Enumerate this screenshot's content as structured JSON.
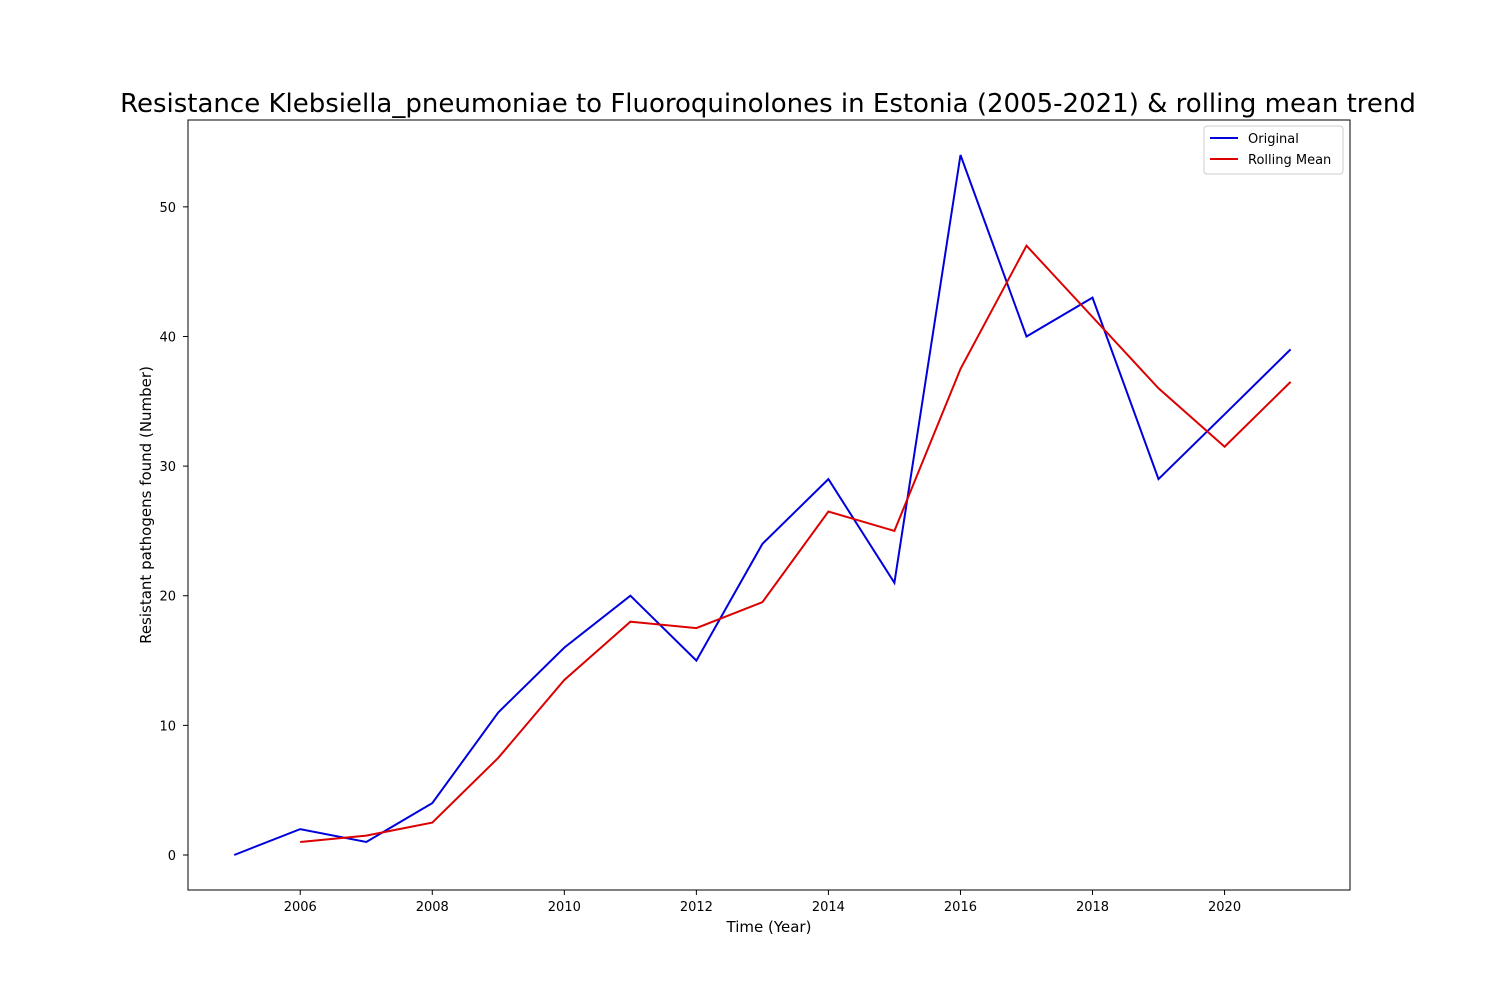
{
  "chart_data": {
    "type": "line",
    "title": "Resistance Klebsiella_pneumoniae to Fluoroquinolones in Estonia (2005-2021) & rolling mean trend",
    "xlabel": "Time (Year)",
    "ylabel": "Resistant pathogens found (Number)",
    "xlim": [
      2004.3,
      2021.9
    ],
    "ylim": [
      -2.7,
      56.7
    ],
    "x_ticks": [
      2006,
      2008,
      2010,
      2012,
      2014,
      2016,
      2018,
      2020
    ],
    "y_ticks": [
      0,
      10,
      20,
      30,
      40,
      50
    ],
    "grid": false,
    "legend_position": "top-right",
    "series": [
      {
        "name": "Original",
        "color": "#0000dd",
        "x": [
          2005,
          2006,
          2007,
          2008,
          2009,
          2010,
          2011,
          2012,
          2013,
          2014,
          2015,
          2016,
          2017,
          2018,
          2019,
          2020,
          2021
        ],
        "values": [
          0,
          2,
          1,
          4,
          11,
          16,
          20,
          15,
          24,
          29,
          21,
          54,
          40,
          43,
          29,
          34,
          39
        ]
      },
      {
        "name": "Rolling Mean",
        "color": "#dd0000",
        "x": [
          2006,
          2007,
          2008,
          2009,
          2010,
          2011,
          2012,
          2013,
          2014,
          2015,
          2016,
          2017,
          2018,
          2019,
          2020,
          2021
        ],
        "values": [
          1,
          1.5,
          2.5,
          7.5,
          13.5,
          18,
          17.5,
          19.5,
          26.5,
          25,
          37.5,
          47,
          41.5,
          36,
          31.5,
          36.5
        ]
      }
    ]
  }
}
